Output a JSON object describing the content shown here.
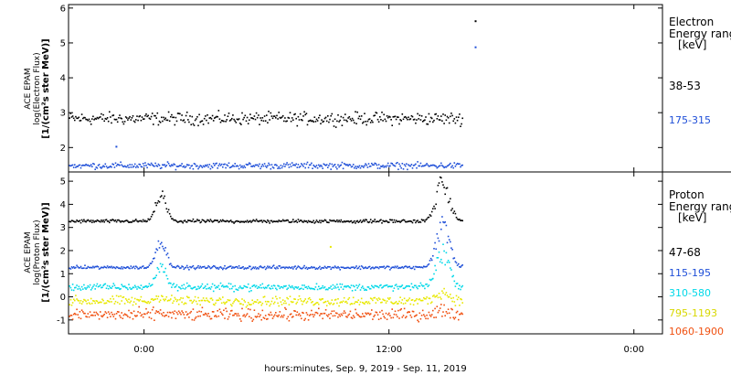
{
  "chart_data": [
    {
      "type": "scatter",
      "panel": "electron",
      "ylabel_lines": [
        "ACE EPAM",
        "log(Electron Flux)",
        "[1/(cm²s ster MeV)]"
      ],
      "ylim": [
        1.3,
        6.1
      ],
      "yticks": [
        2,
        3,
        4,
        5,
        6
      ],
      "legend_title_lines": [
        "Electron",
        "Energy range",
        "[keV]"
      ],
      "series": [
        {
          "name": "38-53",
          "color": "#000000",
          "baseline": 2.85,
          "noise": 0.12,
          "outliers": [
            {
              "x": 16.2,
              "y": 5.65
            }
          ]
        },
        {
          "name": "175-315",
          "color": "#1f4fd8",
          "baseline": 1.5,
          "noise": 0.06,
          "outliers": [
            {
              "x": -1.4,
              "y": 2.05
            },
            {
              "x": 16.2,
              "y": 4.9
            }
          ]
        }
      ]
    },
    {
      "type": "scatter",
      "panel": "proton",
      "ylabel_lines": [
        "ACE EPAM",
        "log(Proton Flux)",
        "[1/(cm²s ster MeV)]"
      ],
      "ylim": [
        -1.6,
        5.4
      ],
      "yticks": [
        -1,
        0,
        1,
        2,
        3,
        4,
        5
      ],
      "legend_title_lines": [
        "Proton",
        "Energy range",
        "[keV]"
      ],
      "events": [
        {
          "center": 0.8,
          "width": 0.35,
          "amp": [
            1.2,
            1.2,
            1.0,
            0.2,
            0.1
          ]
        },
        {
          "center": 14.6,
          "width": 0.45,
          "amp": [
            1.7,
            1.9,
            1.6,
            0.4,
            0.2
          ]
        }
      ],
      "series": [
        {
          "name": "47-68",
          "color": "#000000",
          "baseline": 3.3,
          "noise": 0.05
        },
        {
          "name": "115-195",
          "color": "#1f4fd8",
          "baseline": 1.3,
          "noise": 0.05
        },
        {
          "name": "310-580",
          "color": "#00d8e8",
          "baseline": 0.45,
          "noise": 0.1
        },
        {
          "name": "795-1193",
          "color": "#e8e800",
          "baseline": -0.15,
          "noise": 0.14,
          "outliers": [
            {
              "x": 9.1,
              "y": 2.2
            }
          ]
        },
        {
          "name": "1060-1900",
          "color": "#f05010",
          "baseline": -0.75,
          "noise": 0.17
        }
      ]
    }
  ],
  "x_axis": {
    "range_hours": [
      -3.7,
      25.4
    ],
    "data_end_hours": 15.6,
    "tick_labels": [
      {
        "hour": 0,
        "label": "0:00"
      },
      {
        "hour": 12,
        "label": "12:00"
      },
      {
        "hour": 24,
        "label": "0:00"
      }
    ],
    "label": "hours:minutes, Sep.  9, 2019 - Sep. 11, 2019"
  }
}
